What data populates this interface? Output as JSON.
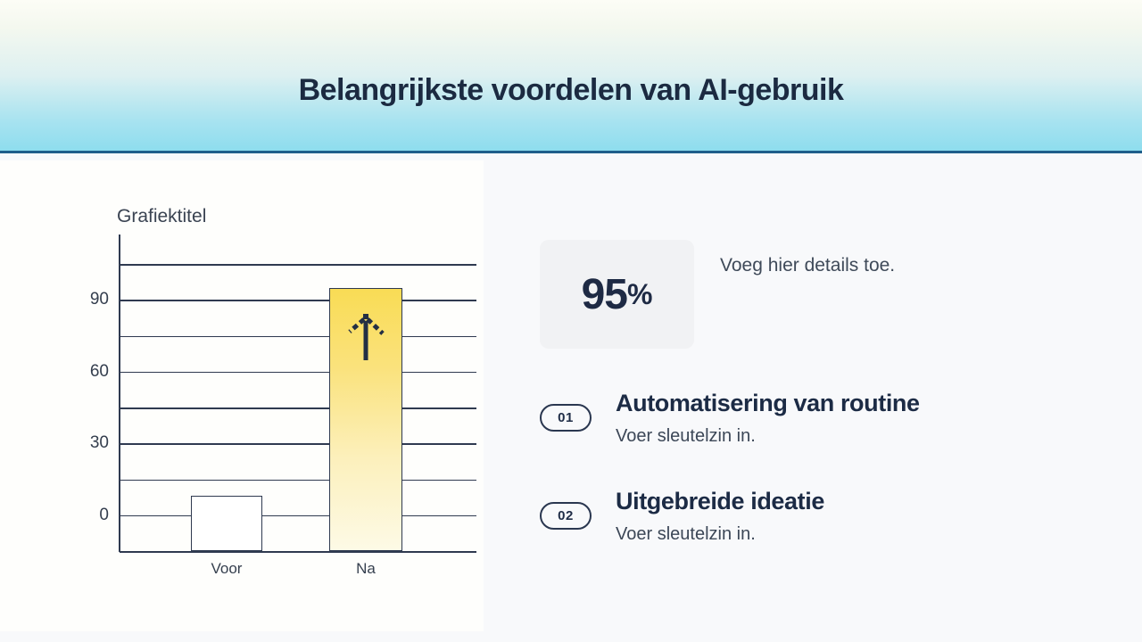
{
  "header": {
    "title": "Belangrijkste voordelen van AI-gebruik"
  },
  "chart_data": {
    "type": "bar",
    "title": "Grafiektitel",
    "categories": [
      "Voor",
      "Na"
    ],
    "values": [
      8,
      95
    ],
    "xlabel": "",
    "ylabel": "",
    "ylim": [
      -15,
      105
    ],
    "gridline_step": 15,
    "grid": true,
    "yticks_labeled": [
      0,
      30,
      60,
      90
    ],
    "legend": "none",
    "bar_styles": [
      "plain-white",
      "yellow-gradient"
    ],
    "bar_icons": [
      null,
      "up-arrow"
    ]
  },
  "stat": {
    "value": "95",
    "unit": "%",
    "caption": "Voeg hier details toe."
  },
  "items": [
    {
      "number": "01",
      "title": "Automatisering van routine",
      "subtitle": "Voer sleutelzin in."
    },
    {
      "number": "02",
      "title": "Uitgebreide ideatie",
      "subtitle": "Voer sleutelzin in."
    }
  ],
  "colors": {
    "navy_text": "#1C2B45",
    "body_text": "#3C4757",
    "grid_line": "#2F3A50",
    "accent_yellow_top": "#F9DC55",
    "accent_yellow_bottom": "#FDFAE6",
    "header_border": "#1F5E8A",
    "header_blue": "#8EDDEE",
    "card_bg": "#F1F2F4",
    "panel_bg": "#FEFEFC"
  }
}
